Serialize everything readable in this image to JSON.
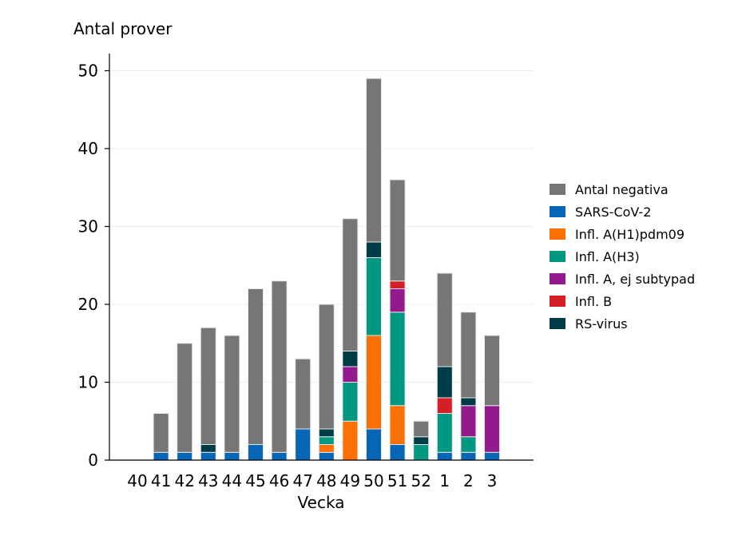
{
  "chart_data": {
    "type": "bar",
    "stacked": true,
    "ylabel": "Antal prover",
    "xlabel": "Vecka",
    "ylim": [
      0,
      52
    ],
    "yticks": [
      0,
      10,
      20,
      30,
      40,
      50
    ],
    "grid": true,
    "legend_position": "right",
    "categories": [
      "40",
      "41",
      "42",
      "43",
      "44",
      "45",
      "46",
      "47",
      "48",
      "49",
      "50",
      "51",
      "52",
      "1",
      "2",
      "3"
    ],
    "series": [
      {
        "name": "SARS-CoV-2",
        "color": "#0765b5",
        "values": [
          0,
          1,
          1,
          1,
          1,
          2,
          1,
          4,
          1,
          0,
          4,
          2,
          0,
          1,
          1,
          1
        ]
      },
      {
        "name": "Infl. A(H1)pdm09",
        "color": "#fc6f03",
        "values": [
          0,
          0,
          0,
          0,
          0,
          0,
          0,
          0,
          1,
          5,
          12,
          5,
          0,
          0,
          0,
          0
        ]
      },
      {
        "name": "Infl. A(H3)",
        "color": "#009880",
        "values": [
          0,
          0,
          0,
          0,
          0,
          0,
          0,
          0,
          1,
          5,
          10,
          12,
          2,
          5,
          2,
          0
        ]
      },
      {
        "name": "Infl. A, ej subtypad",
        "color": "#921a8d",
        "values": [
          0,
          0,
          0,
          0,
          0,
          0,
          0,
          0,
          0,
          2,
          0,
          3,
          0,
          0,
          4,
          6
        ]
      },
      {
        "name": "Infl. B",
        "color": "#d41f26",
        "values": [
          0,
          0,
          0,
          0,
          0,
          0,
          0,
          0,
          0,
          0,
          0,
          1,
          0,
          2,
          0,
          0
        ]
      },
      {
        "name": "RS-virus",
        "color": "#003c48",
        "values": [
          0,
          0,
          0,
          1,
          0,
          0,
          0,
          0,
          1,
          2,
          2,
          0,
          1,
          4,
          1,
          0
        ]
      },
      {
        "name": "Antal negativa",
        "color": "#767676",
        "values": [
          0,
          5,
          14,
          15,
          15,
          20,
          22,
          9,
          16,
          17,
          21,
          13,
          2,
          12,
          11,
          9
        ]
      }
    ],
    "legend_order": [
      "Antal negativa",
      "SARS-CoV-2",
      "Infl. A(H1)pdm09",
      "Infl. A(H3)",
      "Infl. A, ej subtypad",
      "Infl. B",
      "RS-virus"
    ]
  }
}
